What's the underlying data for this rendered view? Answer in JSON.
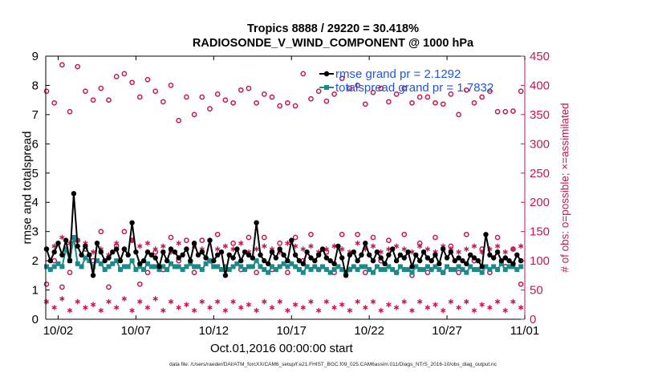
{
  "title_line1": "Tropics 8888 / 29220 = 30.418%",
  "title_line2": "RADIOSONDE_V_WIND_COMPONENT @ 1000 hPa",
  "xlabel": "Oct.01,2016 00:00:00 start",
  "footer": "data file: /Users/raeder/DAI/ATM_forcXX/CAM6_setup/f.e21.FHIST_BGC.f09_025.CAM6assim.011/Diags_NTrS_2016-10/obs_diag_output.nc",
  "colors": {
    "rmse": "#000000",
    "spread": "#1a8a8a",
    "obs": "#c71650",
    "legend_text": "#1f55e0"
  },
  "chart_data": {
    "type": "line",
    "title": "Tropics 8888 / 29220 = 30.418%  RADIOSONDE_V_WIND_COMPONENT @ 1000 hPa",
    "xlabel": "Oct.01,2016 00:00:00 start",
    "ylabel_left": "rmse and totalspread",
    "ylabel_right": "# of obs: o=possible; ×=assimilated",
    "x_ticks": [
      "10/02",
      "10/07",
      "10/12",
      "10/17",
      "10/22",
      "10/27",
      "11/01"
    ],
    "x_tick_days": [
      1,
      6,
      11,
      16,
      21,
      26,
      31
    ],
    "xlim_days": [
      0.2,
      31
    ],
    "y_left_lim": [
      0,
      9
    ],
    "y_left_ticks": [
      0,
      1,
      2,
      3,
      4,
      5,
      6,
      7,
      8,
      9
    ],
    "y_right_lim": [
      0,
      450
    ],
    "y_right_ticks": [
      0,
      50,
      100,
      150,
      200,
      250,
      300,
      350,
      400,
      450
    ],
    "legend": [
      {
        "label": "rmse grand pr = 2.1292",
        "series": "rmse"
      },
      {
        "label": "totalspread grand pr = 1.7832",
        "series": "totalspread"
      }
    ],
    "legend_position": "top-right",
    "x_days": [
      0.25,
      0.5,
      0.75,
      1.0,
      1.25,
      1.5,
      1.75,
      2.0,
      2.25,
      2.5,
      2.75,
      3.0,
      3.25,
      3.5,
      3.75,
      4.0,
      4.25,
      4.5,
      4.75,
      5.0,
      5.25,
      5.5,
      5.75,
      6.0,
      6.25,
      6.5,
      6.75,
      7.0,
      7.25,
      7.5,
      7.75,
      8.0,
      8.25,
      8.5,
      8.75,
      9.0,
      9.25,
      9.5,
      9.75,
      10.0,
      10.25,
      10.5,
      10.75,
      11.0,
      11.25,
      11.5,
      11.75,
      12.0,
      12.25,
      12.5,
      12.75,
      13.0,
      13.25,
      13.5,
      13.75,
      14.0,
      14.25,
      14.5,
      14.75,
      15.0,
      15.25,
      15.5,
      15.75,
      16.0,
      16.25,
      16.5,
      16.75,
      17.0,
      17.25,
      17.5,
      17.75,
      18.0,
      18.25,
      18.5,
      18.75,
      19.0,
      19.25,
      19.5,
      19.75,
      20.0,
      20.25,
      20.5,
      20.75,
      21.0,
      21.25,
      21.5,
      21.75,
      22.0,
      22.25,
      22.5,
      22.75,
      23.0,
      23.25,
      23.5,
      23.75,
      24.0,
      24.25,
      24.5,
      24.75,
      25.0,
      25.25,
      25.5,
      25.75,
      26.0,
      26.25,
      26.5,
      26.75,
      27.0,
      27.25,
      27.5,
      27.75,
      28.0,
      28.25,
      28.5,
      28.75,
      29.0,
      29.25,
      29.5,
      29.75,
      30.0,
      30.25,
      30.5,
      30.75
    ],
    "series": [
      {
        "name": "rmse grand pr = 2.1292",
        "key": "rmse",
        "values": [
          2.4,
          2.0,
          2.3,
          2.6,
          2.2,
          2.7,
          2.0,
          4.3,
          2.5,
          2.2,
          2.5,
          2.2,
          1.5,
          2.6,
          2.3,
          2.0,
          2.1,
          2.3,
          2.4,
          2.0,
          2.4,
          2.2,
          3.3,
          2.3,
          1.9,
          2.0,
          2.3,
          2.2,
          2.1,
          1.8,
          2.3,
          2.0,
          2.4,
          2.3,
          2.1,
          2.2,
          2.4,
          2.0,
          2.6,
          2.2,
          2.3,
          2.1,
          2.7,
          2.0,
          2.2,
          2.3,
          1.5,
          2.2,
          2.1,
          2.4,
          2.0,
          2.3,
          2.2,
          2.1,
          3.3,
          2.2,
          2.0,
          1.9,
          2.3,
          2.1,
          2.4,
          2.2,
          2.0,
          2.7,
          2.2,
          2.0,
          1.9,
          2.3,
          2.1,
          2.0,
          2.2,
          2.4,
          2.1,
          2.0,
          1.9,
          2.5,
          2.1,
          1.5,
          2.2,
          2.3,
          2.0,
          2.2,
          2.6,
          2.2,
          2.0,
          2.3,
          2.1,
          1.9,
          2.2,
          2.4,
          2.0,
          2.2,
          2.1,
          2.3,
          1.8,
          2.2,
          2.0,
          2.3,
          2.1,
          2.0,
          2.2,
          1.9,
          2.4,
          2.1,
          2.3,
          2.0,
          2.1,
          2.0,
          1.9,
          2.2,
          2.1,
          2.0,
          1.8,
          2.9,
          2.2,
          2.1,
          2.3,
          2.0,
          2.1,
          2.0,
          1.9,
          2.2,
          2.0
        ]
      },
      {
        "name": "totalspread grand pr = 1.7832",
        "key": "totalspread",
        "values": [
          1.8,
          1.7,
          1.8,
          1.9,
          1.8,
          2.4,
          2.0,
          2.8,
          1.9,
          1.8,
          2.1,
          2.0,
          1.8,
          2.0,
          1.9,
          1.7,
          1.8,
          1.9,
          2.0,
          1.7,
          1.8,
          1.8,
          2.0,
          1.7,
          1.8,
          1.7,
          1.9,
          1.8,
          1.8,
          1.7,
          1.8,
          1.7,
          1.9,
          1.8,
          1.8,
          1.7,
          1.8,
          1.9,
          1.8,
          1.8,
          1.7,
          1.9,
          2.0,
          1.8,
          1.8,
          1.7,
          1.8,
          1.7,
          1.8,
          1.9,
          1.8,
          1.7,
          1.8,
          1.8,
          2.0,
          1.8,
          1.7,
          1.6,
          1.8,
          1.7,
          1.8,
          1.9,
          1.8,
          1.9,
          1.8,
          1.7,
          1.6,
          1.8,
          1.7,
          1.8,
          1.7,
          1.8,
          1.7,
          1.6,
          1.7,
          1.8,
          1.7,
          1.6,
          1.7,
          1.8,
          1.7,
          1.8,
          1.8,
          1.7,
          1.6,
          1.8,
          1.7,
          1.7,
          1.8,
          1.7,
          1.6,
          1.8,
          1.7,
          1.7,
          1.6,
          1.8,
          1.7,
          1.7,
          1.8,
          1.7,
          1.8,
          1.7,
          1.6,
          1.8,
          1.7,
          1.7,
          1.8,
          1.7,
          1.6,
          1.8,
          1.7,
          1.7,
          1.6,
          1.8,
          1.7,
          1.8,
          1.7,
          1.9,
          1.7,
          1.8,
          1.8,
          1.7,
          1.8
        ]
      },
      {
        "name": "possible",
        "key": "possible_obs",
        "axis": "right",
        "x_days": [
          0.25,
          0.75,
          1.25,
          1.75,
          2.25,
          2.75,
          3.25,
          3.75,
          4.25,
          4.75,
          5.25,
          5.75,
          6.25,
          6.75,
          7.25,
          7.75,
          8.25,
          8.75,
          9.25,
          9.75,
          10.25,
          10.75,
          11.25,
          11.75,
          12.25,
          12.75,
          13.25,
          13.75,
          14.25,
          14.75,
          15.25,
          15.75,
          16.25,
          16.75,
          17.25,
          17.75,
          18.25,
          18.75,
          19.25,
          19.75,
          20.25,
          20.75,
          21.25,
          21.75,
          22.25,
          22.75,
          23.25,
          23.75,
          24.25,
          24.75,
          25.25,
          25.75,
          26.25,
          26.75,
          27.25,
          27.75,
          28.25,
          28.75,
          29.25,
          29.75,
          30.25,
          30.75
        ],
        "values_high": [
          390,
          370,
          435,
          355,
          432,
          390,
          375,
          395,
          375,
          415,
          420,
          405,
          380,
          410,
          390,
          372,
          400,
          340,
          380,
          350,
          380,
          360,
          385,
          375,
          370,
          392,
          395,
          370,
          385,
          380,
          365,
          370,
          365,
          420,
          377,
          390,
          373,
          385,
          412,
          395,
          400,
          368,
          388,
          395,
          372,
          385,
          395,
          370,
          380,
          380,
          370,
          368,
          385,
          350,
          392,
          370,
          380,
          390,
          355,
          355,
          356,
          390
        ],
        "values_low": [
          60,
          100,
          55,
          80,
          135,
          120,
          100,
          150,
          55,
          125,
          150,
          135,
          60,
          80,
          115,
          85,
          140,
          100,
          135,
          80,
          135,
          100,
          145,
          85,
          130,
          85,
          140,
          80,
          140,
          85,
          130,
          80,
          140,
          100,
          145,
          85,
          115,
          80,
          145,
          85,
          145,
          80,
          140,
          100,
          135,
          80,
          145,
          75,
          130,
          80,
          140,
          80,
          125,
          80,
          145,
          100,
          120,
          80,
          140,
          90,
          120,
          60
        ]
      },
      {
        "name": "assimilated",
        "key": "assimilated_obs",
        "axis": "right",
        "x_days": [
          0.25,
          0.75,
          1.25,
          1.75,
          2.25,
          2.75,
          3.25,
          3.75,
          4.25,
          4.75,
          5.25,
          5.75,
          6.25,
          6.75,
          7.25,
          7.75,
          8.25,
          8.75,
          9.25,
          9.75,
          10.25,
          10.75,
          11.25,
          11.75,
          12.25,
          12.75,
          13.25,
          13.75,
          14.25,
          14.75,
          15.25,
          15.75,
          16.25,
          16.75,
          17.25,
          17.75,
          18.25,
          18.75,
          19.25,
          19.75,
          20.25,
          20.75,
          21.25,
          21.75,
          22.25,
          22.75,
          23.25,
          23.75,
          24.25,
          24.75,
          25.25,
          25.75,
          26.25,
          26.75,
          27.25,
          27.75,
          28.25,
          28.75,
          29.25,
          29.75,
          30.25,
          30.75
        ],
        "values_high": [
          120,
          125,
          140,
          130,
          135,
          130,
          115,
          120,
          110,
          130,
          120,
          135,
          125,
          130,
          120,
          125,
          115,
          130,
          120,
          125,
          120,
          135,
          120,
          125,
          120,
          130,
          115,
          120,
          125,
          120,
          115,
          130,
          125,
          120,
          125,
          115,
          120,
          125,
          120,
          115,
          130,
          120,
          125,
          115,
          120,
          125,
          120,
          115,
          125,
          120,
          115,
          125,
          120,
          115,
          120,
          125,
          115,
          120,
          125,
          115,
          120,
          125
        ],
        "values_low": [
          30,
          20,
          35,
          15,
          30,
          20,
          25,
          15,
          30,
          20,
          35,
          15,
          30,
          20,
          35,
          15,
          30,
          20,
          25,
          15,
          30,
          20,
          30,
          15,
          30,
          20,
          25,
          15,
          30,
          20,
          30,
          15,
          25,
          20,
          30,
          15,
          30,
          20,
          25,
          15,
          30,
          20,
          30,
          15,
          25,
          20,
          30,
          15,
          30,
          20,
          25,
          15,
          30,
          20,
          30,
          15,
          25,
          20,
          30,
          15,
          30,
          20
        ]
      }
    ]
  }
}
